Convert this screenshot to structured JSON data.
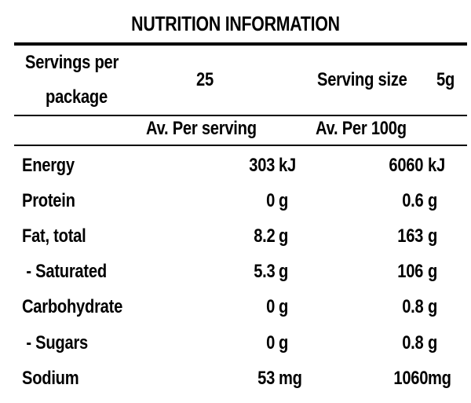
{
  "title": "NUTRITION INFORMATION",
  "servings": {
    "label_line1": "Servings per",
    "label_line2": "package",
    "value": "25",
    "size_label": "Serving size",
    "size_value": "5g"
  },
  "columns": {
    "per_serving": "Av. Per serving",
    "per_100g": "Av. Per 100g"
  },
  "rows": [
    {
      "name": "Energy",
      "serving": "303",
      "serving_unit": "kJ",
      "per100": "6060",
      "per100_unit": "kJ"
    },
    {
      "name": "Protein",
      "serving": "0",
      "serving_unit": "g",
      "per100": "0.6",
      "per100_unit": "g"
    },
    {
      "name": "Fat, total",
      "serving": "8.2",
      "serving_unit": "g",
      "per100": "163",
      "per100_unit": "g"
    },
    {
      "name": " - Saturated",
      "serving": "5.3",
      "serving_unit": "g",
      "per100": "106",
      "per100_unit": "g"
    },
    {
      "name": "Carbohydrate",
      "serving": "0",
      "serving_unit": "g",
      "per100": "0.8",
      "per100_unit": "g"
    },
    {
      "name": " - Sugars",
      "serving": "0",
      "serving_unit": "g",
      "per100": "0.8",
      "per100_unit": "g"
    },
    {
      "name": "Sodium",
      "serving": "53",
      "serving_unit": "mg",
      "per100": "1060",
      "per100_unit": "mg"
    }
  ]
}
